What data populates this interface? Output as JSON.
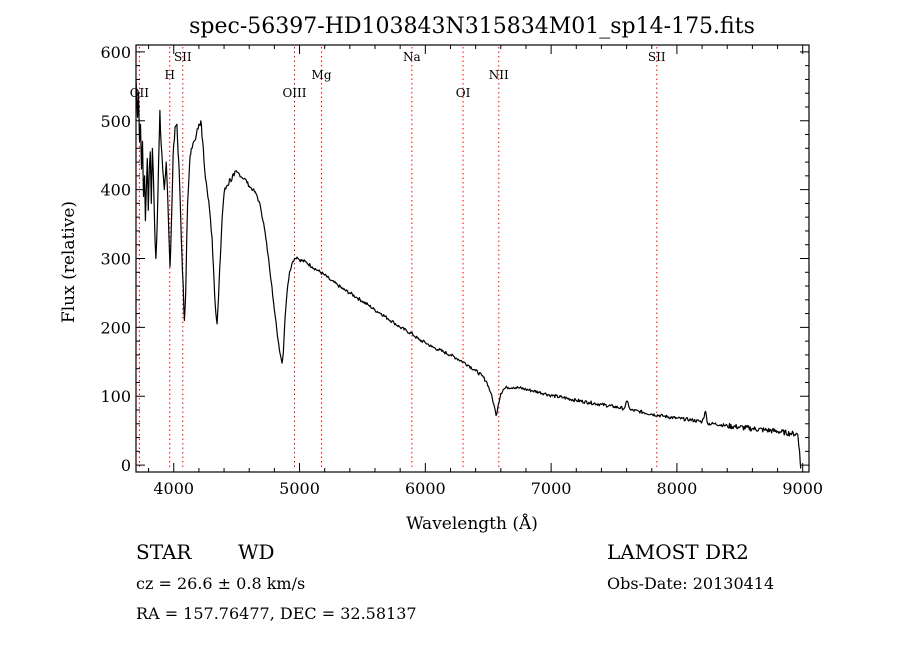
{
  "chart_data": {
    "type": "line",
    "title": "spec-56397-HD103843N315834M01_sp14-175.fits",
    "xlabel": "Wavelength (Å)",
    "ylabel": "Flux (relative)",
    "xlim": [
      3700,
      9050
    ],
    "ylim": [
      -10,
      610
    ],
    "x_ticks": [
      4000,
      5000,
      6000,
      7000,
      8000,
      9000
    ],
    "y_ticks": [
      0,
      100,
      200,
      300,
      400,
      500,
      600
    ],
    "grid": false,
    "line_color": "#000000",
    "marker_color": "#ff0000",
    "spectral_lines": [
      {
        "label": "OII",
        "x": 3727,
        "level": 3
      },
      {
        "label": "H",
        "x": 3968,
        "level": 1
      },
      {
        "label": "SII",
        "x": 4072,
        "level": 0
      },
      {
        "label": "OIII",
        "x": 4960,
        "level": 3
      },
      {
        "label": "Mg",
        "x": 5175,
        "level": 1
      },
      {
        "label": "Na",
        "x": 5893,
        "level": 0
      },
      {
        "label": "OI",
        "x": 6300,
        "level": 3
      },
      {
        "label": "NII",
        "x": 6584,
        "level": 1
      },
      {
        "label": "SII",
        "x": 7840,
        "level": 0
      }
    ],
    "series": [
      {
        "points": [
          [
            3700,
            560
          ],
          [
            3712,
            505
          ],
          [
            3720,
            540
          ],
          [
            3728,
            470
          ],
          [
            3736,
            495
          ],
          [
            3744,
            430
          ],
          [
            3752,
            470
          ],
          [
            3760,
            390
          ],
          [
            3768,
            420
          ],
          [
            3775,
            355
          ],
          [
            3782,
            400
          ],
          [
            3790,
            445
          ],
          [
            3798,
            370
          ],
          [
            3806,
            430
          ],
          [
            3814,
            455
          ],
          [
            3822,
            380
          ],
          [
            3830,
            460
          ],
          [
            3838,
            420
          ],
          [
            3848,
            350
          ],
          [
            3858,
            300
          ],
          [
            3868,
            345
          ],
          [
            3880,
            440
          ],
          [
            3890,
            515
          ],
          [
            3900,
            465
          ],
          [
            3912,
            430
          ],
          [
            3925,
            400
          ],
          [
            3940,
            440
          ],
          [
            3952,
            390
          ],
          [
            3962,
            330
          ],
          [
            3970,
            288
          ],
          [
            3980,
            340
          ],
          [
            3995,
            450
          ],
          [
            4010,
            490
          ],
          [
            4025,
            495
          ],
          [
            4040,
            440
          ],
          [
            4055,
            360
          ],
          [
            4070,
            280
          ],
          [
            4085,
            210
          ],
          [
            4095,
            250
          ],
          [
            4110,
            380
          ],
          [
            4125,
            435
          ],
          [
            4140,
            460
          ],
          [
            4160,
            470
          ],
          [
            4180,
            480
          ],
          [
            4200,
            495
          ],
          [
            4215,
            500
          ],
          [
            4230,
            470
          ],
          [
            4245,
            430
          ],
          [
            4265,
            400
          ],
          [
            4285,
            370
          ],
          [
            4305,
            330
          ],
          [
            4320,
            270
          ],
          [
            4335,
            220
          ],
          [
            4345,
            205
          ],
          [
            4355,
            240
          ],
          [
            4370,
            300
          ],
          [
            4385,
            360
          ],
          [
            4400,
            395
          ],
          [
            4420,
            405
          ],
          [
            4450,
            415
          ],
          [
            4480,
            420
          ],
          [
            4510,
            425
          ],
          [
            4540,
            418
          ],
          [
            4570,
            415
          ],
          [
            4600,
            405
          ],
          [
            4630,
            400
          ],
          [
            4660,
            392
          ],
          [
            4690,
            375
          ],
          [
            4720,
            345
          ],
          [
            4750,
            305
          ],
          [
            4780,
            260
          ],
          [
            4800,
            225
          ],
          [
            4820,
            195
          ],
          [
            4835,
            175
          ],
          [
            4850,
            158
          ],
          [
            4861,
            148
          ],
          [
            4872,
            165
          ],
          [
            4885,
            215
          ],
          [
            4900,
            250
          ],
          [
            4920,
            280
          ],
          [
            4940,
            293
          ],
          [
            4960,
            300
          ],
          [
            4980,
            302
          ],
          [
            5000,
            298
          ],
          [
            5050,
            295
          ],
          [
            5100,
            288
          ],
          [
            5150,
            282
          ],
          [
            5200,
            276
          ],
          [
            5250,
            268
          ],
          [
            5300,
            262
          ],
          [
            5350,
            255
          ],
          [
            5400,
            250
          ],
          [
            5450,
            244
          ],
          [
            5500,
            238
          ],
          [
            5550,
            232
          ],
          [
            5600,
            225
          ],
          [
            5650,
            220
          ],
          [
            5700,
            213
          ],
          [
            5750,
            207
          ],
          [
            5800,
            200
          ],
          [
            5850,
            195
          ],
          [
            5900,
            190
          ],
          [
            5950,
            182
          ],
          [
            6000,
            178
          ],
          [
            6050,
            172
          ],
          [
            6100,
            168
          ],
          [
            6150,
            164
          ],
          [
            6200,
            160
          ],
          [
            6250,
            155
          ],
          [
            6300,
            150
          ],
          [
            6350,
            144
          ],
          [
            6400,
            137
          ],
          [
            6450,
            130
          ],
          [
            6490,
            120
          ],
          [
            6520,
            105
          ],
          [
            6545,
            88
          ],
          [
            6563,
            72
          ],
          [
            6580,
            88
          ],
          [
            6600,
            104
          ],
          [
            6620,
            110
          ],
          [
            6650,
            113
          ],
          [
            6700,
            113
          ],
          [
            6750,
            112
          ],
          [
            6800,
            110
          ],
          [
            6850,
            108
          ],
          [
            6900,
            106
          ],
          [
            6950,
            104
          ],
          [
            7000,
            101
          ],
          [
            7100,
            98
          ],
          [
            7200,
            94
          ],
          [
            7300,
            91
          ],
          [
            7400,
            88
          ],
          [
            7500,
            85
          ],
          [
            7580,
            82
          ],
          [
            7605,
            93
          ],
          [
            7630,
            80
          ],
          [
            7700,
            78
          ],
          [
            7800,
            74
          ],
          [
            7900,
            71
          ],
          [
            8000,
            68
          ],
          [
            8100,
            66
          ],
          [
            8200,
            63
          ],
          [
            8228,
            78
          ],
          [
            8245,
            60
          ],
          [
            8300,
            60
          ],
          [
            8400,
            57
          ],
          [
            8500,
            55
          ],
          [
            8600,
            53
          ],
          [
            8700,
            51
          ],
          [
            8800,
            49
          ],
          [
            8900,
            46
          ],
          [
            8960,
            45
          ],
          [
            8975,
            20
          ],
          [
            8985,
            -5
          ]
        ]
      }
    ]
  },
  "info": {
    "object_type": "STAR",
    "subclass": "WD",
    "cz": "cz = 26.6 ± 0.8 km/s",
    "coords": "RA = 157.76477, DEC =  32.58137",
    "survey": "LAMOST DR2",
    "obs_date": "Obs-Date: 20130414"
  }
}
